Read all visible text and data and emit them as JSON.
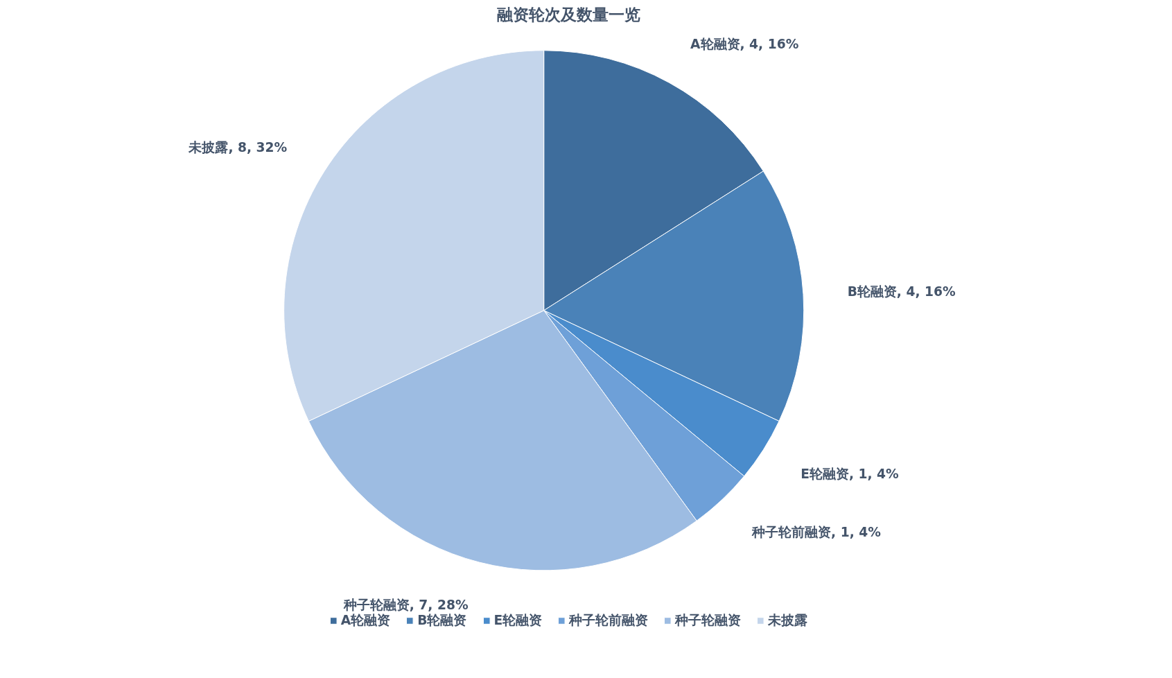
{
  "chart_data": {
    "type": "pie",
    "title": "融资轮次及数量一览",
    "categories": [
      "A轮融资",
      "B轮融资",
      "E轮融资",
      "种子轮前融资",
      "种子轮融资",
      "未披露"
    ],
    "values": [
      4,
      4,
      1,
      1,
      7,
      8
    ],
    "colors": [
      "#3e6d9c",
      "#4a82b8",
      "#4a8ccc",
      "#6ea0d8",
      "#9dbce2",
      "#c4d5eb"
    ],
    "value_labels": [
      "A轮融资, 4, 16%",
      "B轮融资, 4, 16%",
      "E轮融资, 1, 4%",
      "种子轮前融资, 1, 4%",
      "种子轮融资, 7, 28%",
      "未披露, 8, 32%"
    ],
    "legend": "bottom"
  }
}
